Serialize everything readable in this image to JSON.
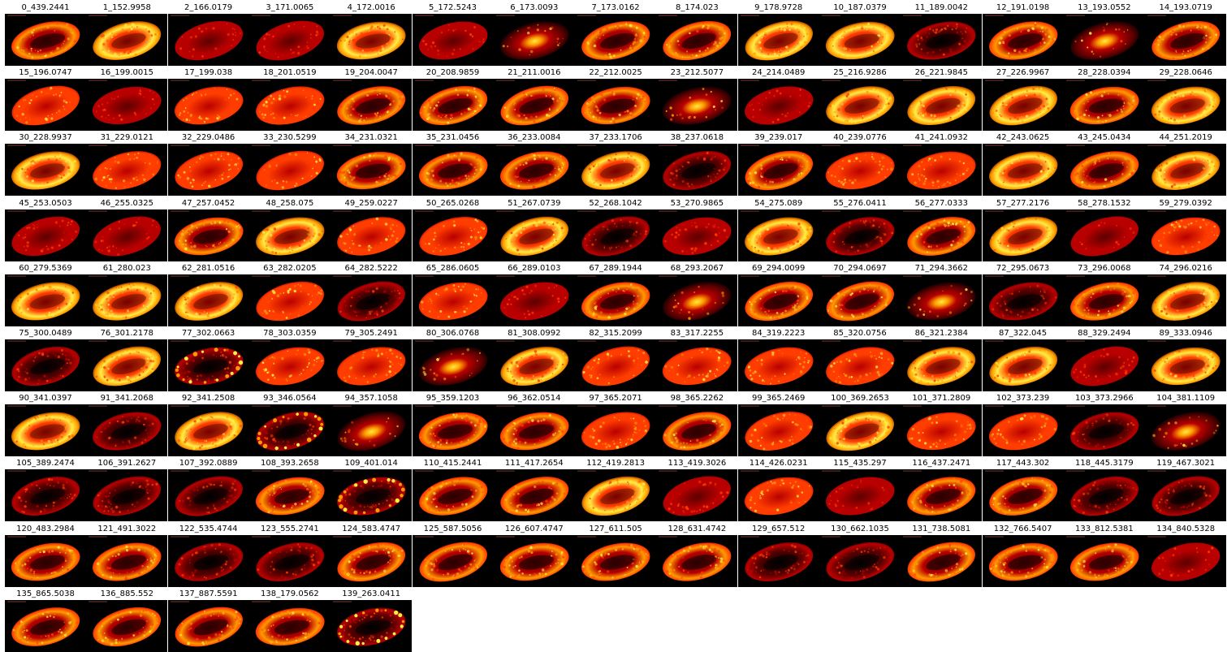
{
  "colormap": [
    "#000000",
    "#5c0000",
    "#b80000",
    "#ff3d00",
    "#ff9a00",
    "#ffee44"
  ],
  "panels": [
    {
      "label": "0_439.2441",
      "pattern": "ring"
    },
    {
      "label": "1_152.9958",
      "pattern": "ring-bright"
    },
    {
      "label": "2_166.0179",
      "pattern": "diffuse-dim"
    },
    {
      "label": "3_171.0065",
      "pattern": "diffuse-dim"
    },
    {
      "label": "4_172.0016",
      "pattern": "ring-bright"
    },
    {
      "label": "5_172.5243",
      "pattern": "diffuse-dim"
    },
    {
      "label": "6_173.0093",
      "pattern": "center-spot"
    },
    {
      "label": "7_173.0162",
      "pattern": "ring"
    },
    {
      "label": "8_174.023",
      "pattern": "ring"
    },
    {
      "label": "9_178.9728",
      "pattern": "ring-bright"
    },
    {
      "label": "10_187.0379",
      "pattern": "ring-bright"
    },
    {
      "label": "11_189.0042",
      "pattern": "edge-dim"
    },
    {
      "label": "12_191.0198",
      "pattern": "ring"
    },
    {
      "label": "13_193.0552",
      "pattern": "center-spot"
    },
    {
      "label": "14_193.0719",
      "pattern": "ring"
    },
    {
      "label": "15_196.0747",
      "pattern": "diffuse"
    },
    {
      "label": "16_199.0015",
      "pattern": "diffuse-dim"
    },
    {
      "label": "17_199.038",
      "pattern": "diffuse"
    },
    {
      "label": "18_201.0519",
      "pattern": "diffuse"
    },
    {
      "label": "19_204.0047",
      "pattern": "ring"
    },
    {
      "label": "20_208.9859",
      "pattern": "ring"
    },
    {
      "label": "21_211.0016",
      "pattern": "ring"
    },
    {
      "label": "22_212.0025",
      "pattern": "ring"
    },
    {
      "label": "23_212.5077",
      "pattern": "center-spot"
    },
    {
      "label": "24_214.0489",
      "pattern": "diffuse-dim"
    },
    {
      "label": "25_216.9286",
      "pattern": "ring-bright"
    },
    {
      "label": "26_221.9845",
      "pattern": "ring-bright"
    },
    {
      "label": "27_226.9967",
      "pattern": "ring-bright"
    },
    {
      "label": "28_228.0394",
      "pattern": "ring"
    },
    {
      "label": "29_228.0646",
      "pattern": "ring-bright"
    },
    {
      "label": "30_228.9937",
      "pattern": "ring-bright"
    },
    {
      "label": "31_229.0121",
      "pattern": "diffuse"
    },
    {
      "label": "32_229.0486",
      "pattern": "diffuse"
    },
    {
      "label": "33_230.5299",
      "pattern": "diffuse"
    },
    {
      "label": "34_231.0321",
      "pattern": "ring"
    },
    {
      "label": "35_231.0456",
      "pattern": "ring"
    },
    {
      "label": "36_233.0084",
      "pattern": "ring"
    },
    {
      "label": "37_233.1706",
      "pattern": "ring-bright"
    },
    {
      "label": "38_237.0618",
      "pattern": "edge-dim"
    },
    {
      "label": "39_239.017",
      "pattern": "ring"
    },
    {
      "label": "40_239.0776",
      "pattern": "diffuse"
    },
    {
      "label": "41_241.0932",
      "pattern": "diffuse"
    },
    {
      "label": "42_243.0625",
      "pattern": "ring-bright"
    },
    {
      "label": "43_245.0434",
      "pattern": "ring"
    },
    {
      "label": "44_251.2019",
      "pattern": "ring-bright"
    },
    {
      "label": "45_253.0503",
      "pattern": "diffuse-dim"
    },
    {
      "label": "46_255.0325",
      "pattern": "diffuse-dim"
    },
    {
      "label": "47_257.0452",
      "pattern": "ring"
    },
    {
      "label": "48_258.075",
      "pattern": "ring-bright"
    },
    {
      "label": "49_259.0227",
      "pattern": "diffuse"
    },
    {
      "label": "50_265.0268",
      "pattern": "diffuse"
    },
    {
      "label": "51_267.0739",
      "pattern": "ring-bright"
    },
    {
      "label": "52_268.1042",
      "pattern": "edge-dim"
    },
    {
      "label": "53_270.9865",
      "pattern": "diffuse-dim"
    },
    {
      "label": "54_275.089",
      "pattern": "ring-bright"
    },
    {
      "label": "55_276.0411",
      "pattern": "edge-dim"
    },
    {
      "label": "56_277.0333",
      "pattern": "ring"
    },
    {
      "label": "57_277.2176",
      "pattern": "ring-bright"
    },
    {
      "label": "58_278.1532",
      "pattern": "diffuse-dim"
    },
    {
      "label": "59_279.0392",
      "pattern": "diffuse"
    },
    {
      "label": "60_279.5369",
      "pattern": "ring-bright"
    },
    {
      "label": "61_280.023",
      "pattern": "ring-bright"
    },
    {
      "label": "62_281.0516",
      "pattern": "ring-bright"
    },
    {
      "label": "63_282.0205",
      "pattern": "diffuse"
    },
    {
      "label": "64_282.5222",
      "pattern": "edge-dim"
    },
    {
      "label": "65_286.0605",
      "pattern": "diffuse"
    },
    {
      "label": "66_289.0103",
      "pattern": "diffuse-dim"
    },
    {
      "label": "67_289.1944",
      "pattern": "ring"
    },
    {
      "label": "68_293.2067",
      "pattern": "center-spot"
    },
    {
      "label": "69_294.0099",
      "pattern": "ring"
    },
    {
      "label": "70_294.0697",
      "pattern": "ring"
    },
    {
      "label": "71_294.3662",
      "pattern": "center-spot"
    },
    {
      "label": "72_295.0673",
      "pattern": "edge-dim"
    },
    {
      "label": "73_296.0068",
      "pattern": "ring"
    },
    {
      "label": "74_296.0216",
      "pattern": "ring-bright"
    },
    {
      "label": "75_300.0489",
      "pattern": "edge-dim"
    },
    {
      "label": "76_301.2178",
      "pattern": "ring-bright"
    },
    {
      "label": "77_302.0663",
      "pattern": "edge-spots"
    },
    {
      "label": "78_303.0359",
      "pattern": "diffuse"
    },
    {
      "label": "79_305.2491",
      "pattern": "diffuse"
    },
    {
      "label": "80_306.0768",
      "pattern": "center-spot"
    },
    {
      "label": "81_308.0992",
      "pattern": "ring-bright"
    },
    {
      "label": "82_315.2099",
      "pattern": "diffuse"
    },
    {
      "label": "83_317.2255",
      "pattern": "diffuse"
    },
    {
      "label": "84_319.2223",
      "pattern": "diffuse"
    },
    {
      "label": "85_320.0756",
      "pattern": "diffuse"
    },
    {
      "label": "86_321.2384",
      "pattern": "ring-bright"
    },
    {
      "label": "87_322.045",
      "pattern": "ring-bright"
    },
    {
      "label": "88_329.2494",
      "pattern": "diffuse-dim"
    },
    {
      "label": "89_333.0946",
      "pattern": "ring-bright"
    },
    {
      "label": "90_341.0397",
      "pattern": "ring-bright"
    },
    {
      "label": "91_341.2068",
      "pattern": "edge-dim"
    },
    {
      "label": "92_341.2508",
      "pattern": "ring-bright"
    },
    {
      "label": "93_346.0564",
      "pattern": "edge-spots"
    },
    {
      "label": "94_357.1058",
      "pattern": "center-spot"
    },
    {
      "label": "95_359.1203",
      "pattern": "ring"
    },
    {
      "label": "96_362.0514",
      "pattern": "ring"
    },
    {
      "label": "97_365.2071",
      "pattern": "diffuse"
    },
    {
      "label": "98_365.2262",
      "pattern": "ring"
    },
    {
      "label": "99_365.2469",
      "pattern": "diffuse"
    },
    {
      "label": "100_369.2653",
      "pattern": "ring-bright"
    },
    {
      "label": "101_371.2809",
      "pattern": "diffuse"
    },
    {
      "label": "102_373.239",
      "pattern": "diffuse"
    },
    {
      "label": "103_373.2966",
      "pattern": "edge-dim"
    },
    {
      "label": "104_381.1109",
      "pattern": "center-spot"
    },
    {
      "label": "105_389.2474",
      "pattern": "edge-dim"
    },
    {
      "label": "106_391.2627",
      "pattern": "edge-dim"
    },
    {
      "label": "107_392.0889",
      "pattern": "edge-dim"
    },
    {
      "label": "108_393.2658",
      "pattern": "ring"
    },
    {
      "label": "109_401.014",
      "pattern": "edge-spots"
    },
    {
      "label": "110_415.2441",
      "pattern": "ring"
    },
    {
      "label": "111_417.2654",
      "pattern": "ring"
    },
    {
      "label": "112_419.2813",
      "pattern": "ring-bright"
    },
    {
      "label": "113_419.3026",
      "pattern": "diffuse-dim"
    },
    {
      "label": "114_426.0231",
      "pattern": "diffuse"
    },
    {
      "label": "115_435.297",
      "pattern": "diffuse-dim"
    },
    {
      "label": "116_437.2471",
      "pattern": "ring"
    },
    {
      "label": "117_443.302",
      "pattern": "ring"
    },
    {
      "label": "118_445.3179",
      "pattern": "edge-dim"
    },
    {
      "label": "119_467.3021",
      "pattern": "edge-dim"
    },
    {
      "label": "120_483.2984",
      "pattern": "ring"
    },
    {
      "label": "121_491.3022",
      "pattern": "ring"
    },
    {
      "label": "122_535.4744",
      "pattern": "edge-dim"
    },
    {
      "label": "123_555.2741",
      "pattern": "edge-dim"
    },
    {
      "label": "124_583.4747",
      "pattern": "ring"
    },
    {
      "label": "125_587.5056",
      "pattern": "ring"
    },
    {
      "label": "126_607.4747",
      "pattern": "ring"
    },
    {
      "label": "127_611.505",
      "pattern": "ring"
    },
    {
      "label": "128_631.4742",
      "pattern": "ring"
    },
    {
      "label": "129_657.512",
      "pattern": "edge-dim"
    },
    {
      "label": "130_662.1035",
      "pattern": "edge-dim"
    },
    {
      "label": "131_738.5081",
      "pattern": "ring"
    },
    {
      "label": "132_766.5407",
      "pattern": "ring"
    },
    {
      "label": "133_812.5381",
      "pattern": "ring"
    },
    {
      "label": "134_840.5328",
      "pattern": "diffuse-dim"
    },
    {
      "label": "135_865.5038",
      "pattern": "ring"
    },
    {
      "label": "136_885.552",
      "pattern": "ring"
    },
    {
      "label": "137_887.5591",
      "pattern": "ring"
    },
    {
      "label": "138_179.0562",
      "pattern": "ring"
    },
    {
      "label": "139_263.0411",
      "pattern": "edge-spots"
    }
  ]
}
